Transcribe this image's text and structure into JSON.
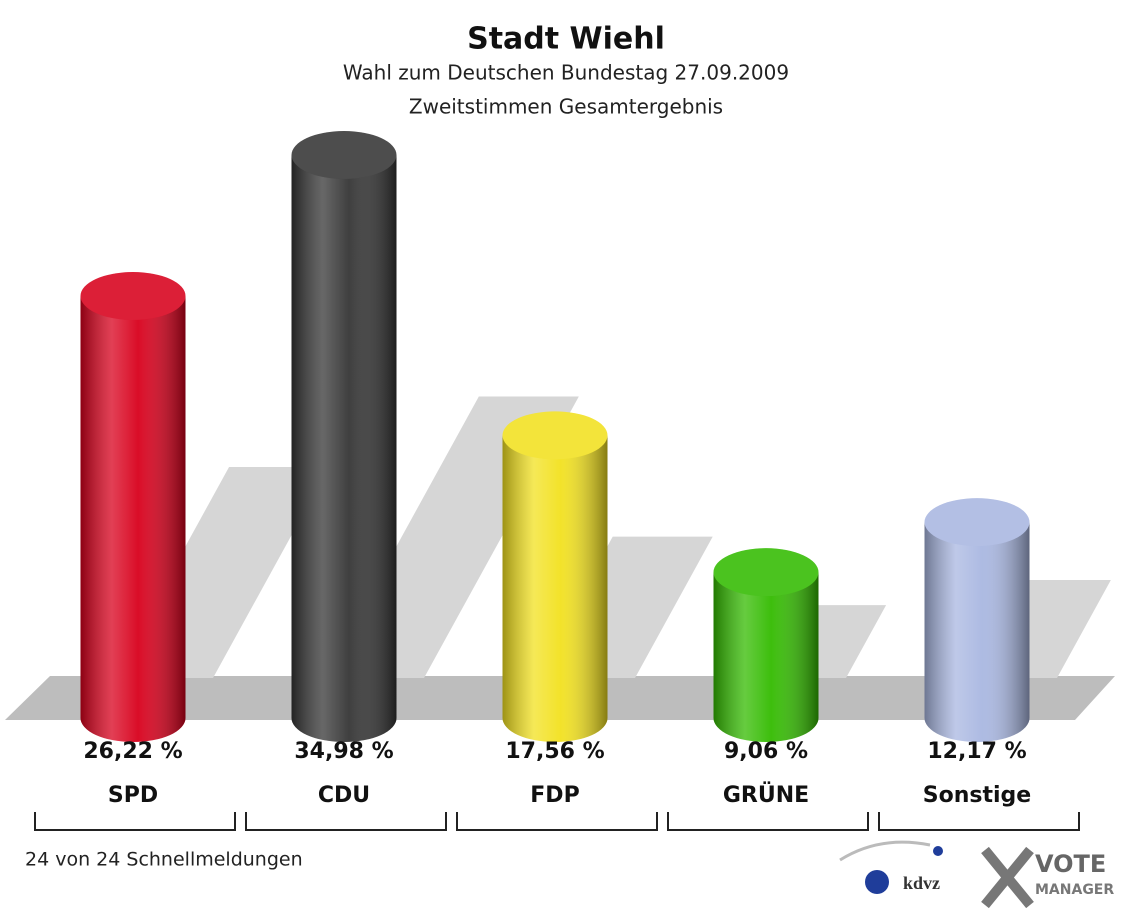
{
  "chart_data": {
    "type": "bar",
    "title": "Stadt Wiehl",
    "subtitle": "Wahl zum Deutschen Bundestag 27.09.2009",
    "subtitle2": "Zweitstimmen Gesamtergebnis",
    "categories": [
      "SPD",
      "CDU",
      "FDP",
      "GRÜNE",
      "Sonstige"
    ],
    "values": [
      26.22,
      34.98,
      17.56,
      9.06,
      12.17
    ],
    "value_labels": [
      "26,22 %",
      "34,98 %",
      "17,56 %",
      "9,06 %",
      "12,17 %"
    ],
    "colors": [
      "#d8001c",
      "#353535",
      "#f2e11f",
      "#33bb00",
      "#a9b7e1"
    ],
    "footnote": "24 von 24 Schnellmeldungen",
    "logo_texts": [
      "kdvz",
      "VOTE",
      "MANAGER"
    ]
  }
}
